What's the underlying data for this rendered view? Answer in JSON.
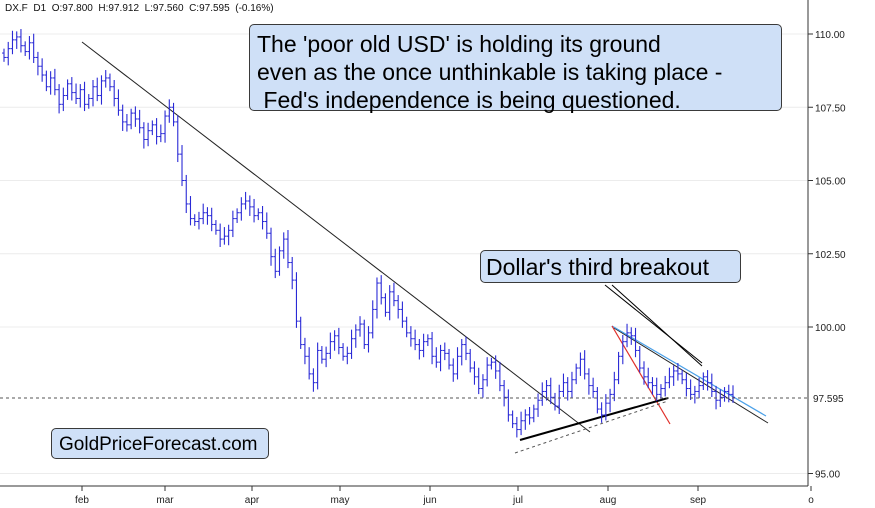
{
  "header": {
    "symbol": "DX.F",
    "timeframe": "D1",
    "open": "O:97.800",
    "high": "H:97.912",
    "low": "L:97.560",
    "close": "C:97.595",
    "change": "(-0.16%)"
  },
  "annotations": {
    "headline": [
      "The 'poor old USD' is holding its ground",
      "even as the once unthinkable is taking place -",
      " Fed's independence is being questioned."
    ],
    "breakout": "Dollar's third breakout",
    "brand": "GoldPriceForecast.com"
  },
  "colors": {
    "candle": "#2a2ad6",
    "trendline": "#222222",
    "callout_bg": "#cfe0f7",
    "red_line": "#e0302a",
    "blue_line": "#4aa0e8",
    "grid": "#ececec"
  },
  "chart_data": {
    "type": "candlestick",
    "title": "",
    "x_tick_labels": [
      "feb",
      "mar",
      "apr",
      "may",
      "jun",
      "jul",
      "aug",
      "sep",
      "o"
    ],
    "y_tick_labels": [
      "110.00",
      "107.50",
      "105.00",
      "102.50",
      "100.00",
      "95.00"
    ],
    "y_ticks": [
      110.0,
      107.5,
      105.0,
      102.5,
      100.0,
      95.0
    ],
    "ylim": [
      95.0,
      110.8
    ],
    "last_price": 97.595,
    "last_price_label": "97.595",
    "grid": false,
    "series_close": [
      109.2,
      109.5,
      109.8,
      109.9,
      109.6,
      109.4,
      109.7,
      109.2,
      108.9,
      108.6,
      108.2,
      108.5,
      108.1,
      107.6,
      107.9,
      108.3,
      108.0,
      107.8,
      108.1,
      107.6,
      107.8,
      108.2,
      107.9,
      108.4,
      108.5,
      108.2,
      107.8,
      107.4,
      107.0,
      106.9,
      107.3,
      107.1,
      106.8,
      106.4,
      106.7,
      106.9,
      106.5,
      106.6,
      107.2,
      107.5,
      107.0,
      105.9,
      105.0,
      104.2,
      103.7,
      103.6,
      103.7,
      103.9,
      103.8,
      103.5,
      103.3,
      103.0,
      103.1,
      103.3,
      103.7,
      103.9,
      104.2,
      104.3,
      104.1,
      103.8,
      103.9,
      103.6,
      103.2,
      102.4,
      101.9,
      102.6,
      103.0,
      102.2,
      101.6,
      100.2,
      99.4,
      99.0,
      98.4,
      98.1,
      99.2,
      98.9,
      99.1,
      99.5,
      99.7,
      99.3,
      99.0,
      99.1,
      99.6,
      99.9,
      100.1,
      99.4,
      99.8,
      100.6,
      101.5,
      101.0,
      100.5,
      101.2,
      100.9,
      100.6,
      100.2,
      99.8,
      99.6,
      99.4,
      99.2,
      99.5,
      99.6,
      99.0,
      98.8,
      99.2,
      99.1,
      98.7,
      98.4,
      99.0,
      99.4,
      99.1,
      98.6,
      98.3,
      97.9,
      98.2,
      98.7,
      98.8,
      98.5,
      98.0,
      97.6,
      97.0,
      96.7,
      96.5,
      96.8,
      97.0,
      96.9,
      97.2,
      97.5,
      97.8,
      98.0,
      97.6,
      97.3,
      97.8,
      98.1,
      97.8,
      98.2,
      98.6,
      98.9,
      98.4,
      98.0,
      97.8,
      97.2,
      97.0,
      97.4,
      97.7,
      98.2,
      99.0,
      99.5,
      99.8,
      99.7,
      99.2,
      98.6,
      98.3,
      98.1,
      98.0,
      97.7,
      97.9,
      98.1,
      98.3,
      98.5,
      98.4,
      98.2,
      97.9,
      97.7,
      97.8,
      98.0,
      98.3,
      98.1,
      97.8,
      97.5,
      97.6,
      97.8,
      97.7,
      97.6
    ]
  }
}
